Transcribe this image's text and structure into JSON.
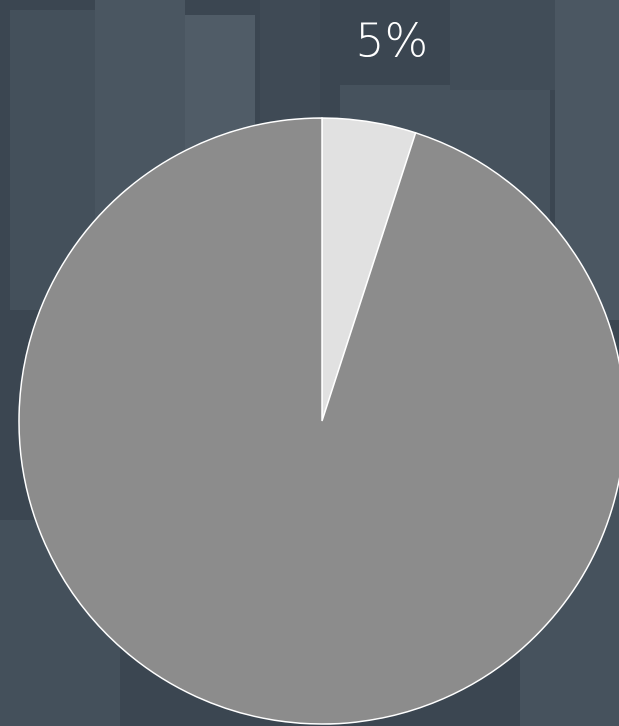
{
  "chart_data": {
    "type": "pie",
    "values": [
      5,
      95
    ],
    "value_labels": [
      "5%",
      null
    ],
    "colors": [
      "#e1e1e1",
      "#8c8c8c"
    ],
    "start_angle": 0,
    "direction": "clockwise"
  }
}
